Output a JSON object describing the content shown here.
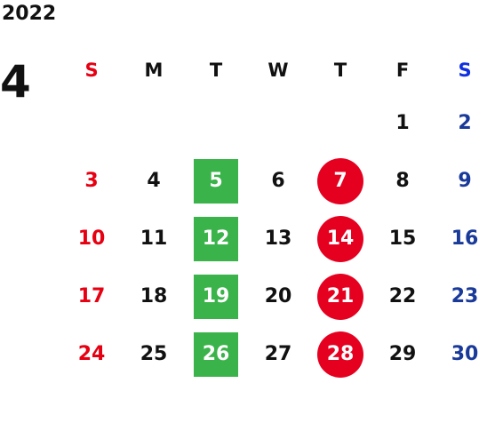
{
  "year": "2022",
  "month": "4",
  "weekdays": [
    "S",
    "M",
    "T",
    "W",
    "T",
    "F",
    "S"
  ],
  "colors": {
    "sunday": "#e60012",
    "saturday": "#1a3a9a",
    "tuesday_mark": "#3ab34a",
    "thursday_mark": "#e60020"
  },
  "weeks": [
    [
      "",
      "",
      "",
      "",
      "",
      "1",
      "2"
    ],
    [
      "3",
      "4",
      "5",
      "6",
      "7",
      "8",
      "9"
    ],
    [
      "10",
      "11",
      "12",
      "13",
      "14",
      "15",
      "16"
    ],
    [
      "17",
      "18",
      "19",
      "20",
      "21",
      "22",
      "23"
    ],
    [
      "24",
      "25",
      "26",
      "27",
      "28",
      "29",
      "30"
    ]
  ]
}
